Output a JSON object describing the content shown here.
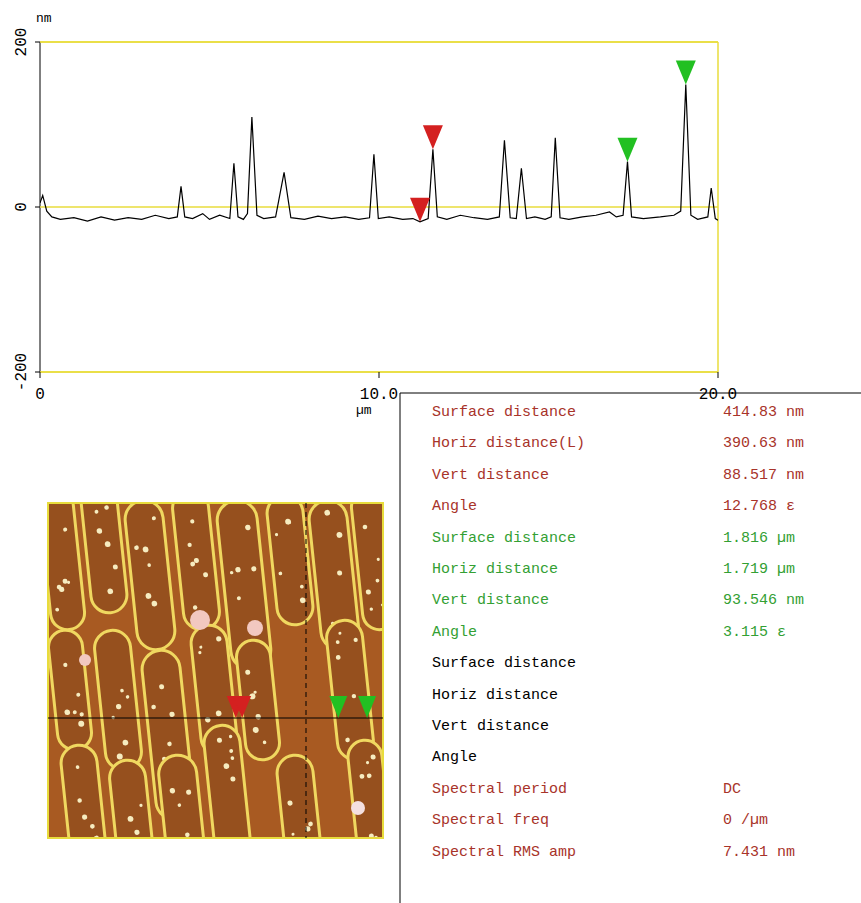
{
  "chart_data": {
    "type": "line",
    "y_label": "nm",
    "x_label": "µm",
    "color": "#000000",
    "grid": true,
    "xlim": [
      0,
      20
    ],
    "xticks": [
      0,
      {
        "value": 10,
        "label": "10.0"
      },
      {
        "value": 20,
        "label": "20.0"
      }
    ],
    "ylim": [
      -200,
      200
    ],
    "yticks": [
      -200,
      0,
      200
    ],
    "x": [
      0,
      0.08,
      0.2,
      0.35,
      0.6,
      1.0,
      1.4,
      1.8,
      2.2,
      2.6,
      3.0,
      3.4,
      3.8,
      4.05,
      4.16,
      4.27,
      4.5,
      4.8,
      5.0,
      5.3,
      5.6,
      5.72,
      5.84,
      6.0,
      6.12,
      6.25,
      6.4,
      6.6,
      6.95,
      7.2,
      7.4,
      7.8,
      8.2,
      8.6,
      9.0,
      9.4,
      9.72,
      9.85,
      9.98,
      10.3,
      10.7,
      11.0,
      11.21,
      11.45,
      11.59,
      11.72,
      12.0,
      12.4,
      12.8,
      13.2,
      13.55,
      13.7,
      13.87,
      14.05,
      14.2,
      14.35,
      14.6,
      14.9,
      15.08,
      15.2,
      15.34,
      15.6,
      16.0,
      16.4,
      16.8,
      17.0,
      17.2,
      17.33,
      17.45,
      17.8,
      18.3,
      18.7,
      18.9,
      19.05,
      19.2,
      19.4,
      19.7,
      19.8,
      19.92,
      20.0
    ],
    "values": [
      5,
      14,
      -5,
      -12,
      -15,
      -13,
      -17,
      -12,
      -16,
      -13,
      -15,
      -10,
      -14,
      -12,
      25,
      -12,
      -14,
      -8,
      -15,
      -10,
      -14,
      53,
      -12,
      -15,
      -8,
      109,
      -10,
      -14,
      -12,
      42,
      -13,
      -15,
      -11,
      -14,
      -12,
      -15,
      -13,
      64,
      -14,
      -12,
      -15,
      -14,
      -18,
      -14,
      70,
      -12,
      -15,
      -10,
      -13,
      -15,
      -12,
      81,
      -13,
      -14,
      47,
      -14,
      -12,
      -15,
      -12,
      84,
      -13,
      -15,
      -12,
      -10,
      -6,
      -12,
      -10,
      55,
      -12,
      -14,
      -12,
      -10,
      -5,
      148.5,
      -10,
      -15,
      -12,
      23,
      -14,
      -16
    ],
    "cursors": [
      {
        "x": 11.21,
        "y": -18,
        "color": "#d42020"
      },
      {
        "x": 11.59,
        "y": 70,
        "color": "#d42020"
      },
      {
        "x": 17.33,
        "y": 55,
        "color": "#22c022"
      },
      {
        "x": 19.05,
        "y": 148.5,
        "color": "#22c022"
      }
    ]
  },
  "measurements": [
    {
      "label": "Surface distance",
      "value": "414.83 nm",
      "color": "#a8332a"
    },
    {
      "label": "Horiz distance(L)",
      "value": "390.63 nm",
      "color": "#a8332a"
    },
    {
      "label": "Vert distance",
      "value": "88.517 nm",
      "color": "#a8332a"
    },
    {
      "label": "Angle",
      "value": "12.768 ε",
      "color": "#a8332a"
    },
    {
      "label": "Surface distance",
      "value": "1.816 µm",
      "color": "#33a033"
    },
    {
      "label": "Horiz distance",
      "value": "1.719 µm",
      "color": "#33a033"
    },
    {
      "label": "Vert distance",
      "value": "93.546 nm",
      "color": "#33a033"
    },
    {
      "label": "Angle",
      "value": "3.115 ε",
      "color": "#33a033"
    },
    {
      "label": "Surface distance",
      "color": "#000000"
    },
    {
      "label": "Horiz distance",
      "color": "#000000"
    },
    {
      "label": "Vert distance",
      "color": "#000000"
    },
    {
      "label": "Angle",
      "color": "#000000"
    },
    {
      "label": "Spectral period",
      "value": "DC",
      "color": "#a8332a"
    },
    {
      "label": "Spectral freq",
      "value": "0 /µm",
      "color": "#a8332a"
    },
    {
      "label": "Spectral RMS amp",
      "value": "7.431 nm",
      "color": "#a8332a"
    }
  ]
}
